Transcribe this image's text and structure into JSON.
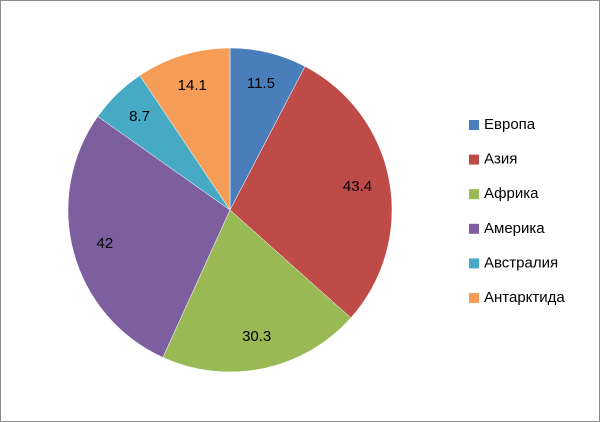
{
  "chart_data": {
    "type": "pie",
    "categories": [
      "Европа",
      "Азия",
      "Африка",
      "Америка",
      "Австралия",
      "Антарктида"
    ],
    "values": [
      11.5,
      43.4,
      30.3,
      42,
      8.7,
      14.1
    ],
    "colors": [
      "#4a7ebb",
      "#be4b48",
      "#98b954",
      "#7d5fa0",
      "#46aac5",
      "#f59d56"
    ],
    "legend": "right"
  }
}
